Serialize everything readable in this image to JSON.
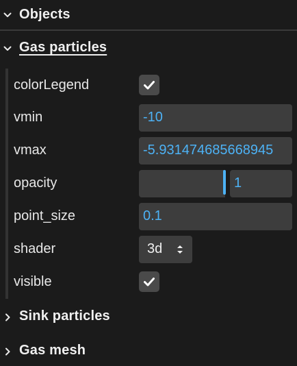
{
  "folders": {
    "objects": {
      "title": "Objects",
      "expanded": true
    },
    "gas_particles": {
      "title": "Gas particles",
      "expanded": true
    },
    "sink_particles": {
      "title": "Sink particles",
      "expanded": false
    },
    "gas_mesh": {
      "title": "Gas mesh",
      "expanded": false
    }
  },
  "controls": {
    "colorLegend": {
      "label": "colorLegend",
      "checked": true
    },
    "vmin": {
      "label": "vmin",
      "value": "-10"
    },
    "vmax": {
      "label": "vmax",
      "value": "-5.931474685668945"
    },
    "opacity": {
      "label": "opacity",
      "value": "1",
      "fraction": 1.0
    },
    "point_size": {
      "label": "point_size",
      "value": "0.1"
    },
    "shader": {
      "label": "shader",
      "value": "3d"
    },
    "visible": {
      "label": "visible",
      "checked": true
    }
  },
  "colors": {
    "background": "#1b1b1b",
    "field": "#3d3d3d",
    "accent": "#4db2f5",
    "text": "#eaeaea"
  },
  "icons": {
    "expanded": "chevron-down-icon",
    "collapsed": "chevron-right-icon",
    "check": "checkmark-icon",
    "select": "up-down-arrows-icon"
  }
}
